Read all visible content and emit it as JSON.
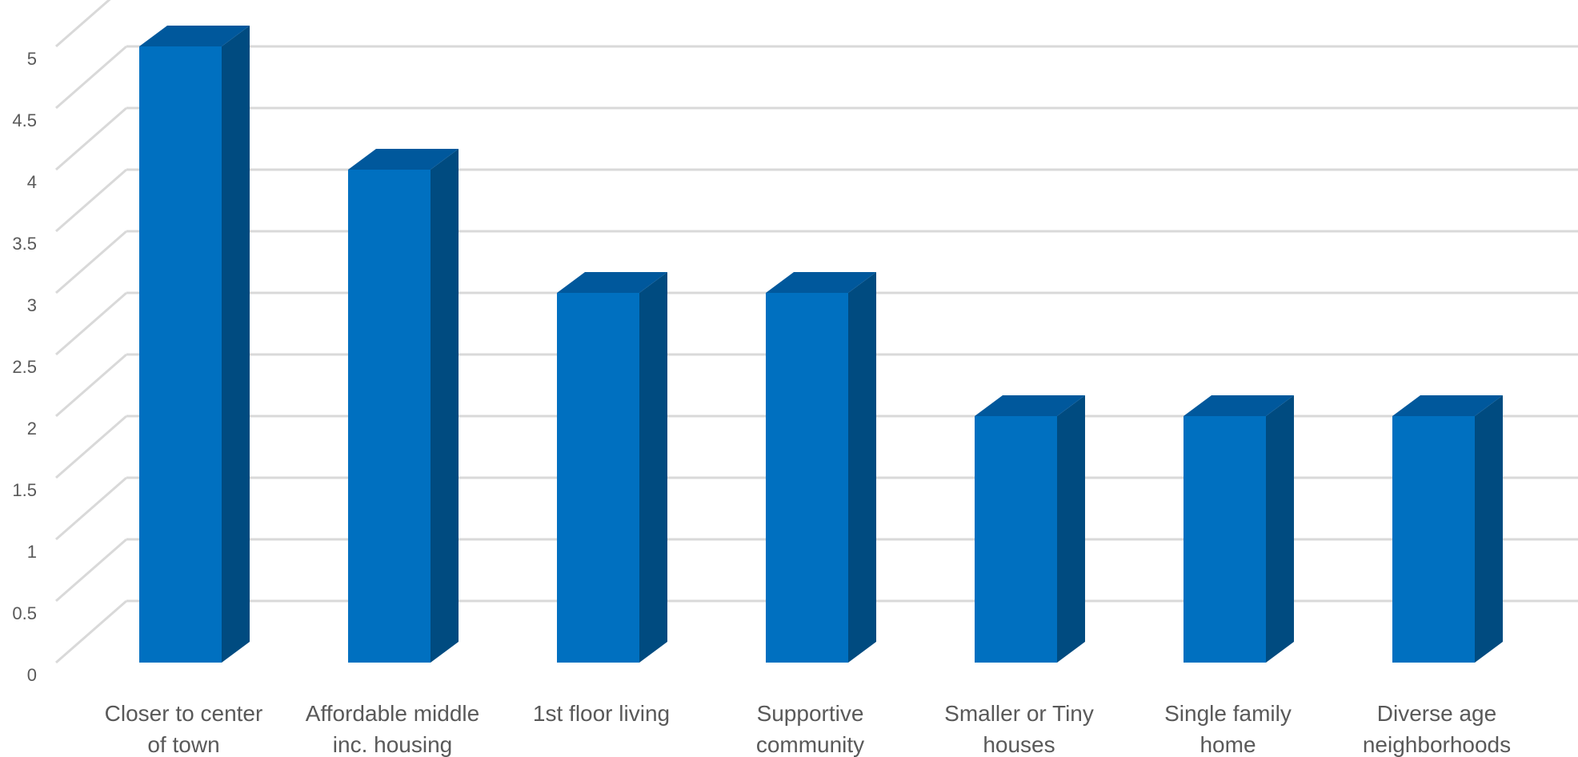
{
  "chart_data": {
    "type": "bar",
    "style": "3d-column",
    "categories": [
      [
        "Closer to center",
        "of town"
      ],
      [
        "Affordable middle",
        "inc. housing"
      ],
      [
        "1st floor living"
      ],
      [
        "Supportive",
        "community"
      ],
      [
        "Smaller or Tiny",
        "houses"
      ],
      [
        "Single family",
        "home"
      ],
      [
        "Diverse age",
        "neighborhoods"
      ]
    ],
    "values": [
      5,
      4,
      3,
      3,
      2,
      2,
      2
    ],
    "y_ticks": [
      "0",
      "0.5",
      "1",
      "1.5",
      "2",
      "2.5",
      "3",
      "3.5",
      "4",
      "4.5",
      "5"
    ],
    "ylim": [
      0,
      5.5
    ],
    "title": "",
    "xlabel": "",
    "ylabel": "",
    "grid": true,
    "legend": "none",
    "colors": {
      "bar_front": "#0070c0",
      "bar_side": "#004b80",
      "bar_top": "#00589c",
      "grid": "#d9d9d9",
      "text": "#595959"
    }
  }
}
